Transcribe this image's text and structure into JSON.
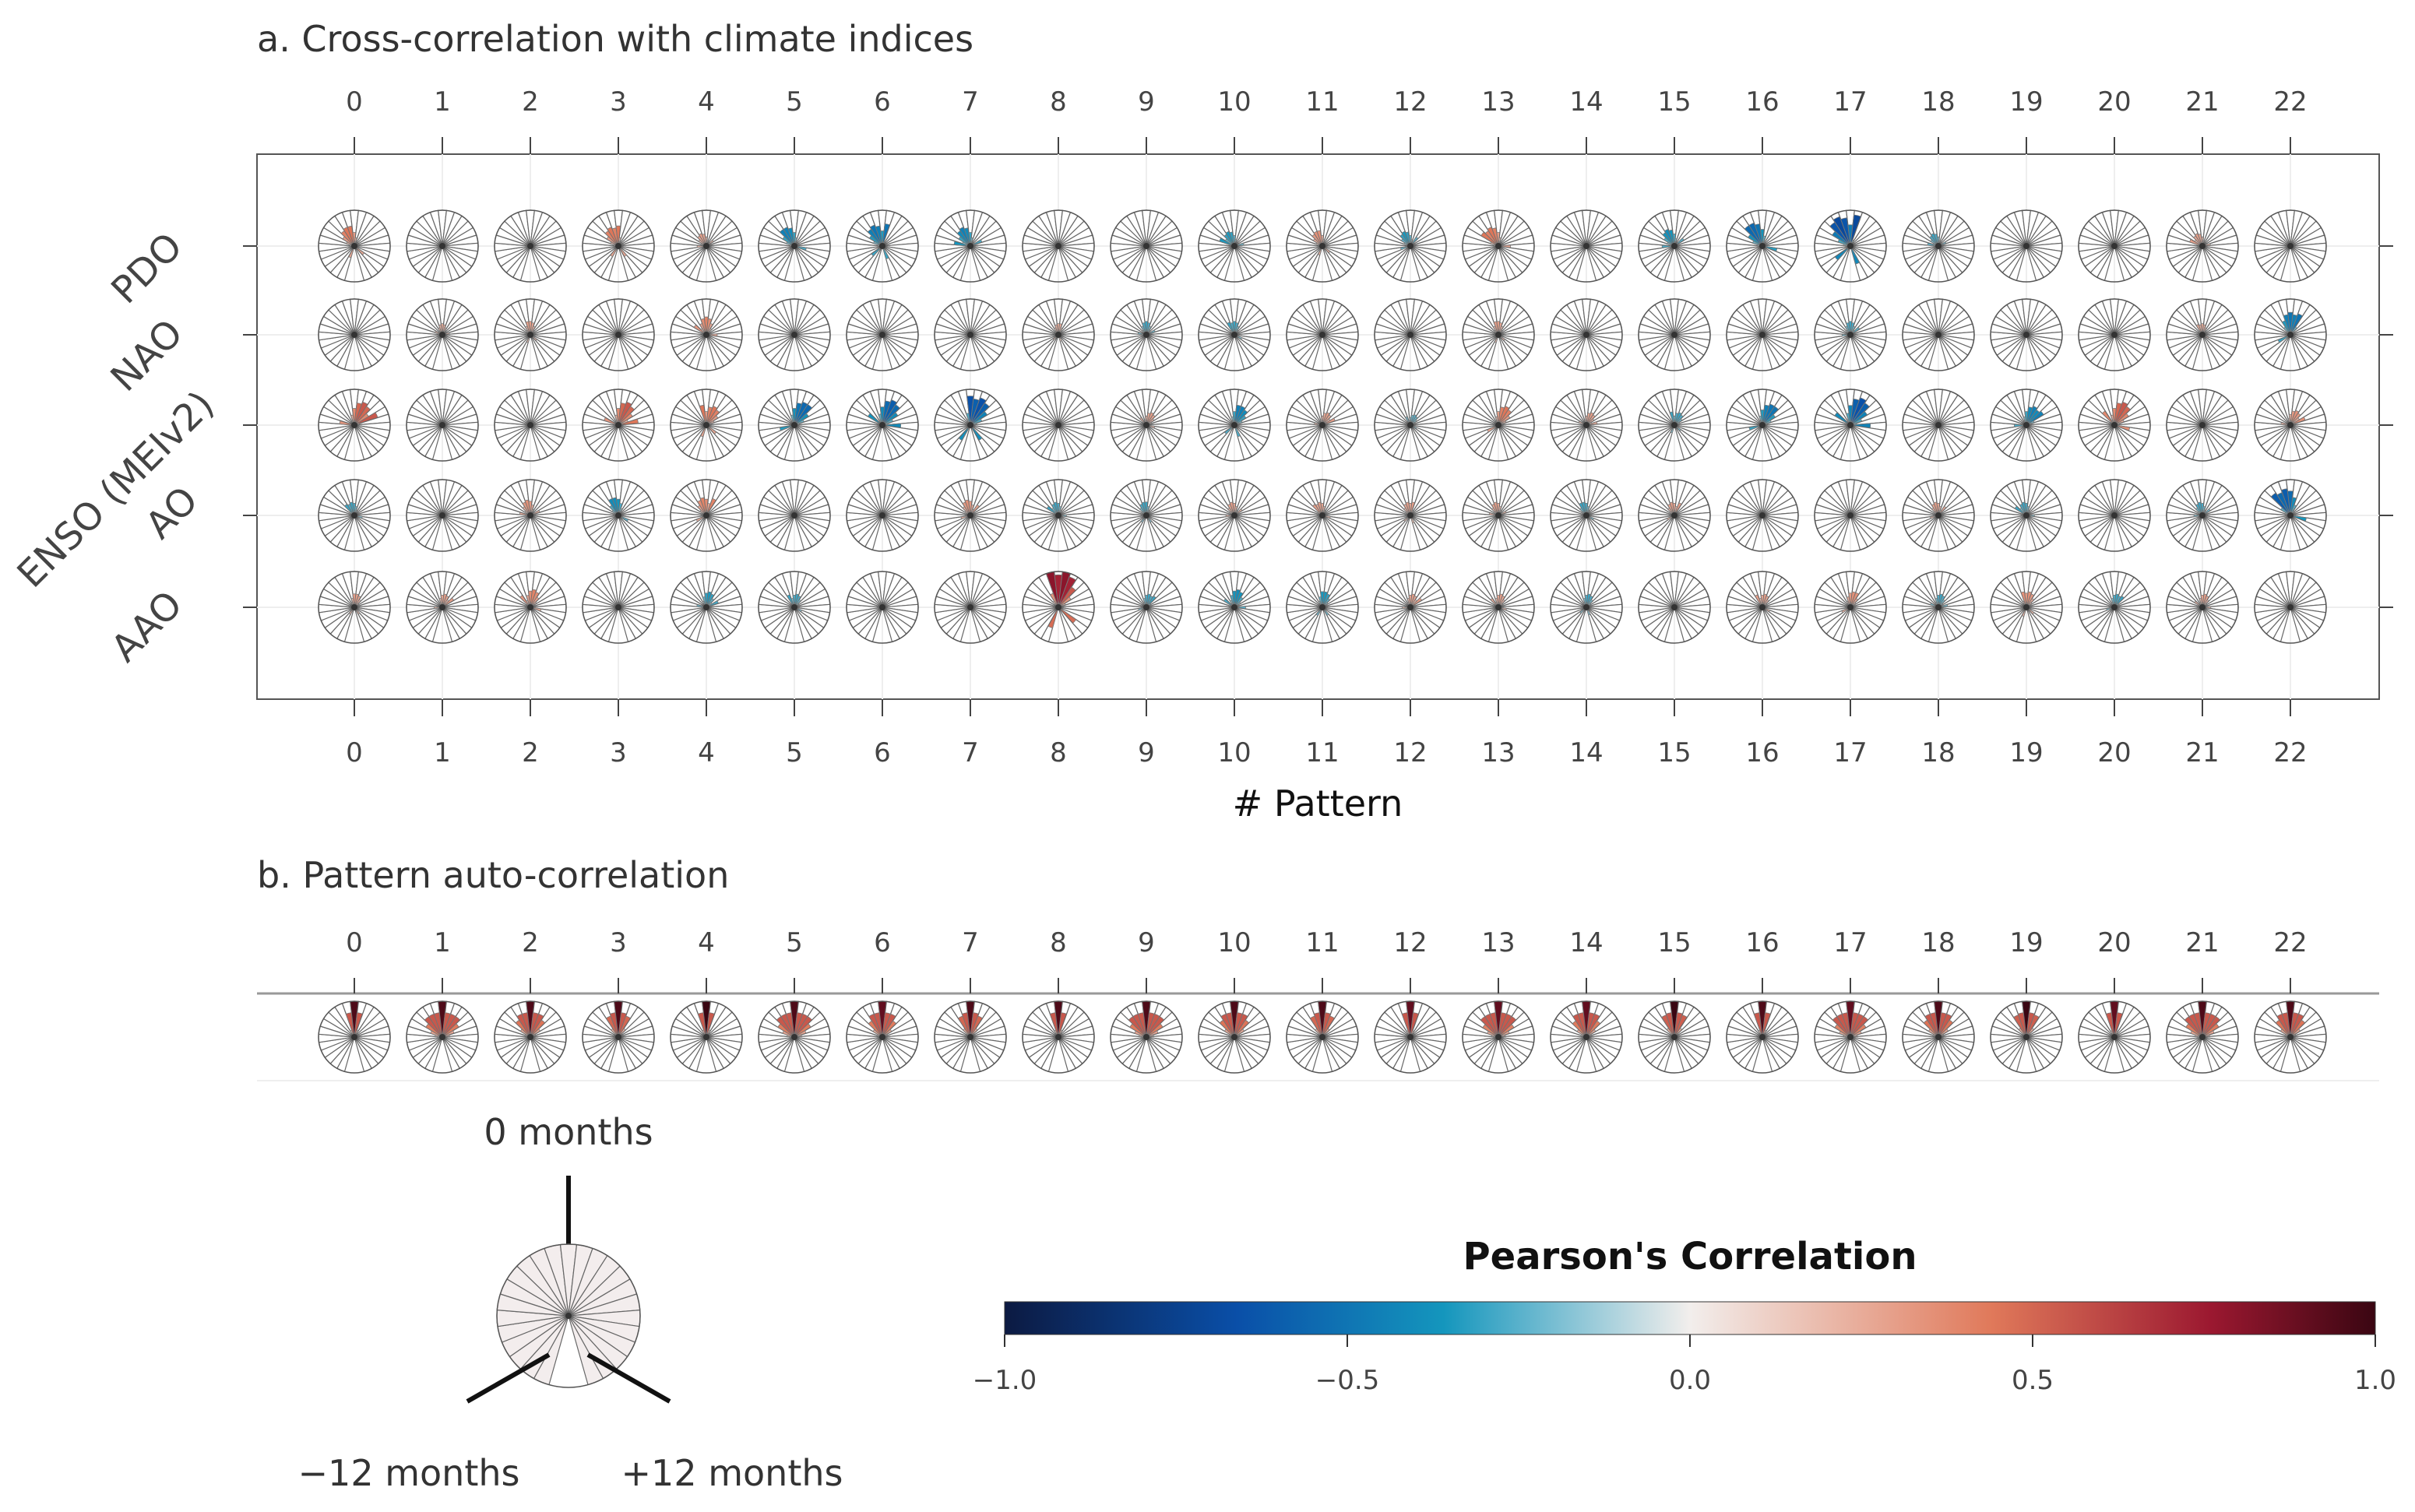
{
  "chart_data": [
    {
      "type": "polar-glyph-matrix",
      "title": "a. Cross-correlation with climate indices",
      "xlabel": "# Pattern",
      "patterns": [
        0,
        1,
        2,
        3,
        4,
        5,
        6,
        7,
        8,
        9,
        10,
        11,
        12,
        13,
        14,
        15,
        16,
        17,
        18,
        19,
        20,
        21,
        22
      ],
      "rows": [
        "PDO",
        "NAO",
        "ENSO (MEIv2)",
        "AO",
        "AAO"
      ],
      "lag_range_months": [
        -12,
        12
      ],
      "dominant_correlation": {
        "PDO": [
          0.45,
          0,
          0,
          0.45,
          0.3,
          -0.45,
          -0.5,
          -0.45,
          0,
          0,
          -0.35,
          0.35,
          -0.35,
          0.45,
          0,
          -0.4,
          -0.55,
          -0.7,
          -0.3,
          0,
          0,
          0.3,
          0
        ],
        "NAO": [
          0,
          0.25,
          0.3,
          0,
          0.4,
          0,
          0,
          0,
          0.25,
          -0.3,
          -0.3,
          0,
          0,
          0.3,
          0,
          0,
          0,
          -0.3,
          0,
          0,
          0,
          0.25,
          -0.5
        ],
        "ENSO (MEIv2)": [
          0.55,
          0,
          0,
          0.55,
          0.45,
          -0.55,
          -0.6,
          -0.65,
          0,
          0.3,
          -0.45,
          0.3,
          -0.25,
          0.45,
          0.3,
          -0.3,
          -0.5,
          -0.65,
          0,
          -0.45,
          0.55,
          0,
          0.35
        ],
        "AO": [
          -0.3,
          0,
          0.35,
          -0.4,
          0.4,
          0,
          0,
          0.35,
          -0.3,
          -0.3,
          0.3,
          0.3,
          0.3,
          0.3,
          -0.3,
          0.3,
          0,
          0,
          0.3,
          -0.3,
          0,
          -0.3,
          -0.6
        ],
        "AAO": [
          0.3,
          0.3,
          0.4,
          0,
          -0.35,
          -0.3,
          0,
          0,
          0.8,
          -0.3,
          -0.4,
          -0.35,
          0.3,
          0.3,
          -0.3,
          0,
          0.3,
          0.35,
          -0.3,
          0.35,
          -0.3,
          0.3,
          0
        ]
      }
    },
    {
      "type": "polar-glyph-row",
      "title": "b. Pattern auto-correlation",
      "patterns": [
        0,
        1,
        2,
        3,
        4,
        5,
        6,
        7,
        8,
        9,
        10,
        11,
        12,
        13,
        14,
        15,
        16,
        17,
        18,
        19,
        20,
        21,
        22
      ],
      "peak_correlation_at_zero_lag": [
        0.95,
        0.95,
        0.95,
        0.95,
        1.0,
        0.95,
        0.9,
        0.95,
        0.95,
        0.95,
        0.95,
        0.95,
        0.9,
        0.9,
        0.9,
        1.0,
        0.95,
        0.9,
        0.95,
        1.0,
        0.9,
        0.95,
        0.95
      ]
    }
  ],
  "legend": {
    "top_label": "0 months",
    "left_label": "−12 months",
    "right_label": "+12 months"
  },
  "colorbar": {
    "title": "Pearson's Correlation",
    "range": [
      -1.0,
      1.0
    ],
    "tick_labels": [
      "−1.0",
      "−0.5",
      "0.0",
      "0.5",
      "1.0"
    ],
    "colors": [
      "#0c1a42",
      "#0a4fa8",
      "#1496bd",
      "#f2eeec",
      "#e0795a",
      "#9b1830",
      "#3a0612"
    ]
  }
}
